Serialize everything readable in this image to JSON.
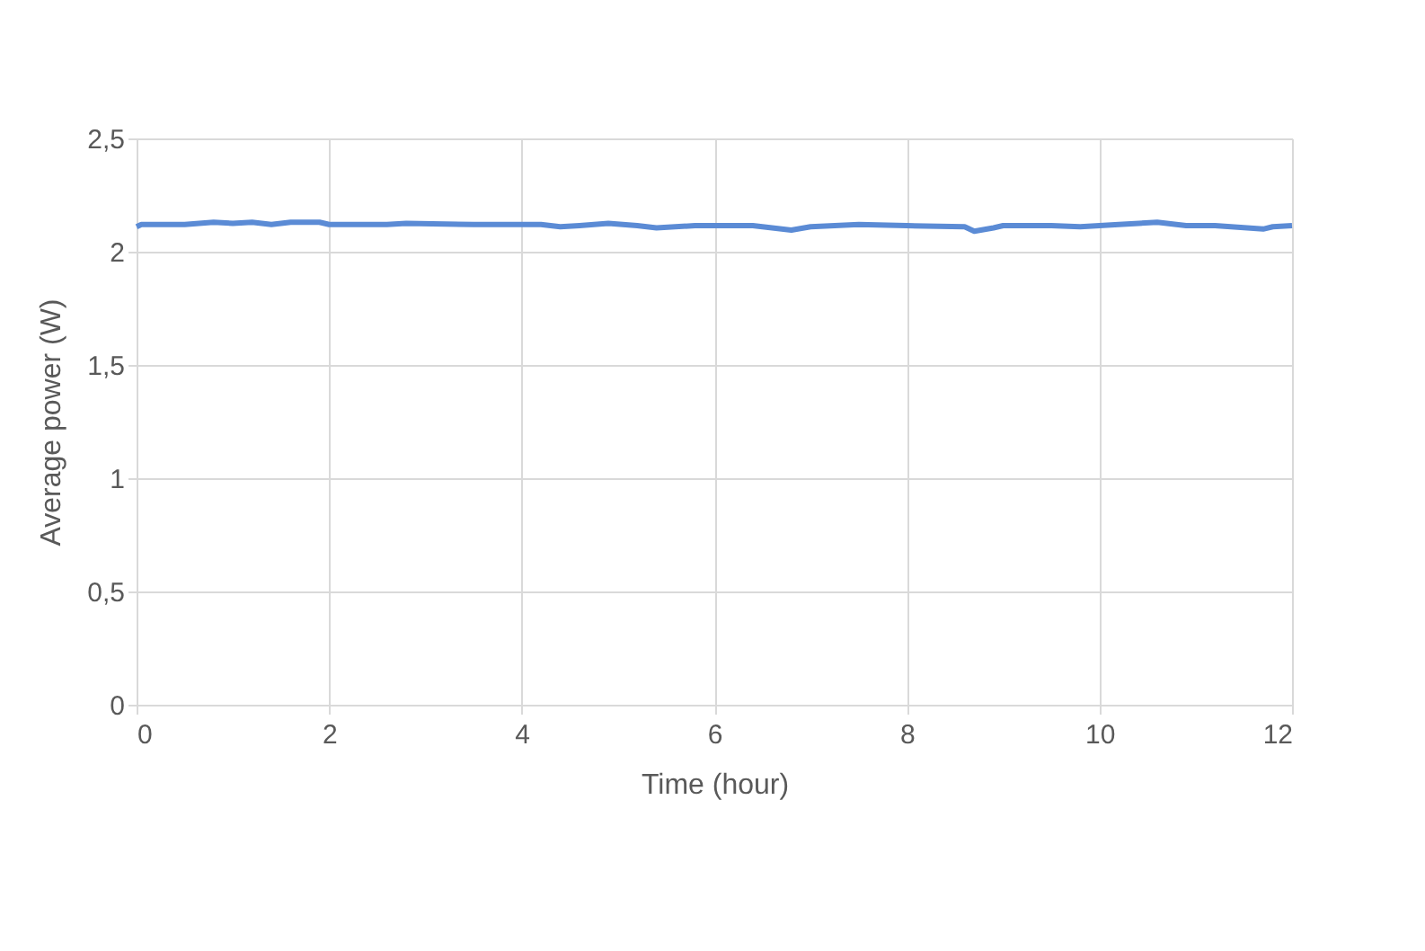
{
  "chart_data": {
    "type": "line",
    "xlabel": "Time (hour)",
    "ylabel": "Average power (W)",
    "x": [
      0,
      0.05,
      0.3,
      0.5,
      0.8,
      1.0,
      1.2,
      1.4,
      1.6,
      1.9,
      2.0,
      2.6,
      2.8,
      3.5,
      4.2,
      4.4,
      4.6,
      4.9,
      5.2,
      5.4,
      5.8,
      6.4,
      6.8,
      7.0,
      7.5,
      8.0,
      8.6,
      8.7,
      8.9,
      9.0,
      9.5,
      9.8,
      10.2,
      10.6,
      10.9,
      11.2,
      11.7,
      11.8,
      12
    ],
    "series": [
      {
        "color": "#5b8bd5",
        "values": [
          2.11,
          2.12,
          2.12,
          2.12,
          2.13,
          2.125,
          2.13,
          2.12,
          2.13,
          2.13,
          2.12,
          2.12,
          2.125,
          2.12,
          2.12,
          2.11,
          2.115,
          2.125,
          2.115,
          2.105,
          2.115,
          2.115,
          2.095,
          2.11,
          2.12,
          2.115,
          2.11,
          2.09,
          2.105,
          2.115,
          2.115,
          2.11,
          2.12,
          2.13,
          2.115,
          2.115,
          2.1,
          2.11,
          2.115
        ]
      }
    ],
    "xlim": [
      0,
      12
    ],
    "xticks": [
      0,
      2,
      4,
      6,
      8,
      10,
      12
    ],
    "ylim": [
      0,
      2.5
    ],
    "yticks": [
      0,
      {
        "value": 0.5,
        "label": "0,5"
      },
      1,
      {
        "value": 1.5,
        "label": "1,5"
      },
      2,
      {
        "value": 2.5,
        "label": "2,5"
      }
    ],
    "grid": true,
    "marker": "none",
    "line_style": "solid"
  }
}
